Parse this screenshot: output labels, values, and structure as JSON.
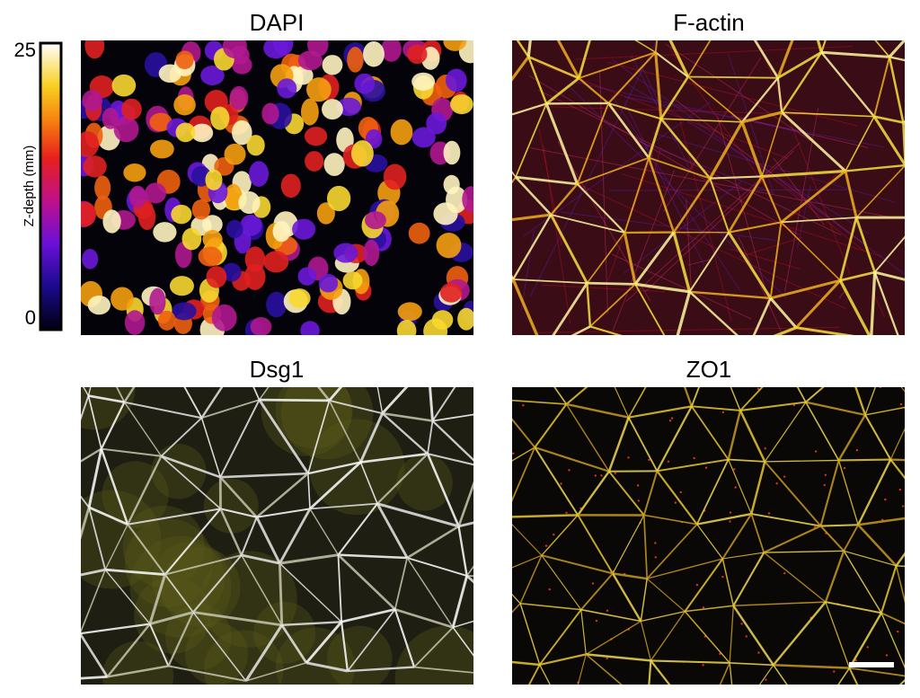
{
  "panels": [
    {
      "title": "DAPI"
    },
    {
      "title": "F-actin"
    },
    {
      "title": "Dsg1"
    },
    {
      "title": "ZO1"
    }
  ],
  "colorbar": {
    "label": "Z-depth (mm)",
    "lim": [
      0,
      25
    ],
    "ticks": [
      0,
      25
    ]
  }
}
